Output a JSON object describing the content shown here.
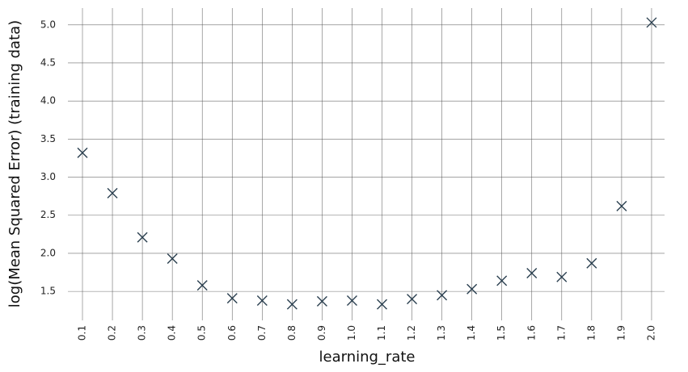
{
  "chart_data": {
    "type": "scatter",
    "xlabel": "learning_rate",
    "ylabel": "log(Mean Squared Error) (training data)",
    "categories": [
      "0.1",
      "0.2",
      "0.3",
      "0.4",
      "0.5",
      "0.6",
      "0.7",
      "0.8",
      "0.9",
      "1.0",
      "1.1",
      "1.2",
      "1.3",
      "1.4",
      "1.5",
      "1.6",
      "1.7",
      "1.8",
      "1.9",
      "2.0"
    ],
    "values": [
      3.32,
      2.79,
      2.21,
      1.93,
      1.58,
      1.41,
      1.38,
      1.33,
      1.37,
      1.38,
      1.33,
      1.4,
      1.45,
      1.53,
      1.64,
      1.74,
      1.69,
      1.87,
      2.62,
      5.03
    ],
    "yticks": [
      "1.5",
      "2.0",
      "2.5",
      "3.0",
      "3.5",
      "4.0",
      "4.5",
      "5.0"
    ],
    "ylim": [
      1.12,
      5.22
    ],
    "grid": true,
    "marker": "x",
    "marker_color": "#2a3f4f"
  }
}
